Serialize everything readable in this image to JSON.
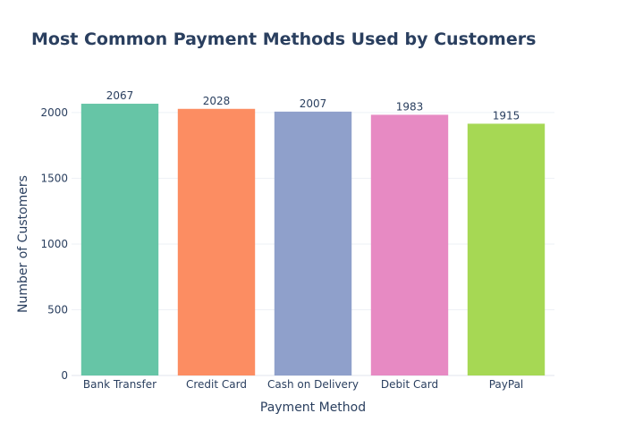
{
  "chart_data": {
    "type": "bar",
    "title": "Most Common Payment Methods Used by Customers",
    "xlabel": "Payment Method",
    "ylabel": "Number of Customers",
    "categories": [
      "Bank Transfer",
      "Credit Card",
      "Cash on Delivery",
      "Debit Card",
      "PayPal"
    ],
    "values": [
      2067,
      2028,
      2007,
      1983,
      1915
    ],
    "value_labels": [
      "2067",
      "2028",
      "2007",
      "1983",
      "1915"
    ],
    "colors": [
      "#66c5a6",
      "#fc8d62",
      "#8fa0cb",
      "#e78ac3",
      "#a6d854"
    ],
    "ylim": [
      0,
      2176
    ],
    "yticks": [
      0,
      500,
      1000,
      1500,
      2000
    ],
    "ytick_labels": [
      "0",
      "500",
      "1000",
      "1500",
      "2000"
    ],
    "grid": true,
    "legend": "none"
  }
}
